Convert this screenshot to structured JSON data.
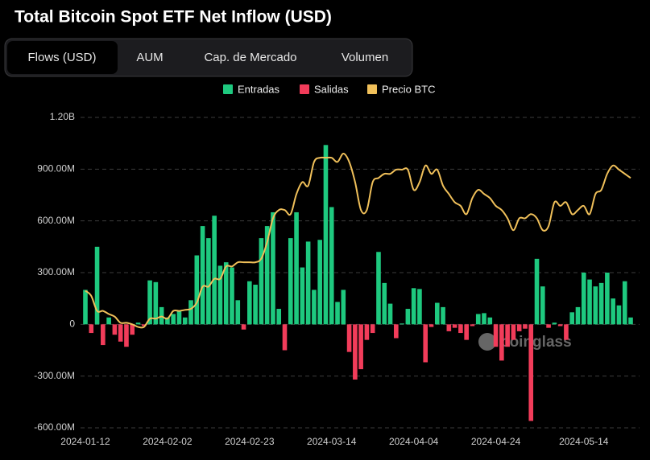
{
  "tabs": [
    "Flows (USD)",
    "AUM",
    "Cap. de Mercado",
    "Volumen"
  ],
  "chart_data": {
    "type": "bar",
    "title": "Total Bitcoin Spot ETF Net Inflow (USD)",
    "watermark": "coinglass",
    "categories": [
      "2024-01-12",
      null,
      null,
      null,
      null,
      null,
      null,
      null,
      null,
      null,
      null,
      null,
      null,
      null,
      "2024-02-02",
      null,
      null,
      null,
      null,
      null,
      null,
      null,
      null,
      null,
      null,
      null,
      null,
      null,
      "2024-02-23",
      null,
      null,
      null,
      null,
      null,
      null,
      null,
      null,
      null,
      null,
      null,
      null,
      null,
      "2024-03-14",
      null,
      null,
      null,
      null,
      null,
      null,
      null,
      null,
      null,
      null,
      null,
      null,
      null,
      "2024-04-04",
      null,
      null,
      null,
      null,
      null,
      null,
      null,
      null,
      null,
      null,
      null,
      null,
      null,
      "2024-04-24",
      null,
      null,
      null,
      null,
      null,
      null,
      null,
      null,
      null,
      null,
      null,
      null,
      null,
      null,
      "2024-05-14",
      null,
      null,
      null,
      null,
      null,
      null,
      null,
      null
    ],
    "ylim": [
      -600000000,
      1200000000
    ],
    "yticks": [
      {
        "value": -600000000,
        "label": "-600.00M"
      },
      {
        "value": -300000000,
        "label": "-300.00M"
      },
      0,
      {
        "value": 300000000,
        "label": "300.00M"
      },
      {
        "value": 600000000,
        "label": "600.00M"
      },
      {
        "value": 900000000,
        "label": "900.00M"
      },
      {
        "value": 1200000000,
        "label": "1.20B"
      }
    ],
    "y2lim": [
      20000,
      80000
    ],
    "grid": true,
    "legend": "top",
    "series": [
      {
        "name": "Entradas",
        "color": "#1ec97f",
        "values": [
          200000000,
          null,
          450000000,
          null,
          40000000,
          null,
          null,
          null,
          null,
          10000000,
          null,
          255000000,
          245000000,
          100000000,
          40000000,
          60000000,
          80000000,
          40000000,
          140000000,
          400000000,
          570000000,
          500000000,
          630000000,
          340000000,
          360000000,
          330000000,
          140000000,
          null,
          250000000,
          230000000,
          500000000,
          570000000,
          650000000,
          90000000,
          null,
          500000000,
          650000000,
          330000000,
          480000000,
          200000000,
          490000000,
          1040000000,
          680000000,
          130000000,
          200000000,
          null,
          null,
          null,
          null,
          null,
          420000000,
          240000000,
          120000000,
          null,
          5000000,
          90000000,
          210000000,
          205000000,
          null,
          null,
          125000000,
          100000000,
          null,
          null,
          null,
          null,
          null,
          60000000,
          65000000,
          40000000,
          null,
          null,
          null,
          null,
          null,
          null,
          null,
          380000000,
          220000000,
          null,
          10000000,
          null,
          null,
          70000000,
          100000000,
          300000000,
          260000000,
          220000000,
          240000000,
          300000000,
          150000000,
          110000000,
          250000000,
          40000000
        ]
      },
      {
        "name": "Salidas",
        "color": "#f23c5a",
        "values": [
          null,
          -50000000,
          null,
          -120000000,
          null,
          -60000000,
          -100000000,
          -130000000,
          -60000000,
          null,
          -10000000,
          null,
          null,
          null,
          null,
          null,
          null,
          null,
          null,
          null,
          null,
          null,
          null,
          null,
          null,
          null,
          null,
          -30000000,
          null,
          null,
          null,
          null,
          null,
          null,
          -150000000,
          null,
          null,
          null,
          null,
          null,
          null,
          null,
          null,
          null,
          null,
          -160000000,
          -320000000,
          -260000000,
          -90000000,
          -50000000,
          null,
          null,
          null,
          -80000000,
          null,
          null,
          null,
          null,
          -220000000,
          -15000000,
          null,
          null,
          -40000000,
          -20000000,
          -50000000,
          -90000000,
          -10000000,
          null,
          null,
          null,
          -130000000,
          -210000000,
          -130000000,
          -90000000,
          -40000000,
          -25000000,
          -560000000,
          null,
          null,
          -20000000,
          null,
          -10000000,
          -90000000,
          null,
          null,
          null,
          null,
          null,
          null,
          null,
          null,
          null,
          null,
          null
        ]
      },
      {
        "name": "Precio BTC",
        "color": "#f0c05a",
        "type": "line",
        "axis": "y2",
        "values": [
          46500,
          45500,
          42600,
          42600,
          42000,
          41500,
          40300,
          40300,
          40000,
          39500,
          39500,
          41100,
          41100,
          41500,
          41100,
          42600,
          42600,
          42800,
          43000,
          44200,
          47300,
          47300,
          48800,
          48800,
          51200,
          51200,
          52000,
          52000,
          52000,
          52000,
          52700,
          55900,
          60500,
          62100,
          62100,
          61300,
          65200,
          67500,
          66800,
          71400,
          72200,
          72200,
          72200,
          71400,
          73000,
          71400,
          67500,
          62100,
          62100,
          67500,
          68300,
          69100,
          69100,
          69900,
          69900,
          69900,
          66000,
          67500,
          70700,
          69100,
          69900,
          66800,
          65200,
          63600,
          62900,
          61300,
          64400,
          66000,
          65200,
          64400,
          62900,
          62100,
          60500,
          58200,
          60500,
          60500,
          61300,
          60500,
          58200,
          59000,
          63600,
          62900,
          63600,
          61300,
          62100,
          62900,
          61300,
          65200,
          66000,
          69100,
          70700,
          69900,
          69100,
          68300
        ]
      }
    ]
  }
}
